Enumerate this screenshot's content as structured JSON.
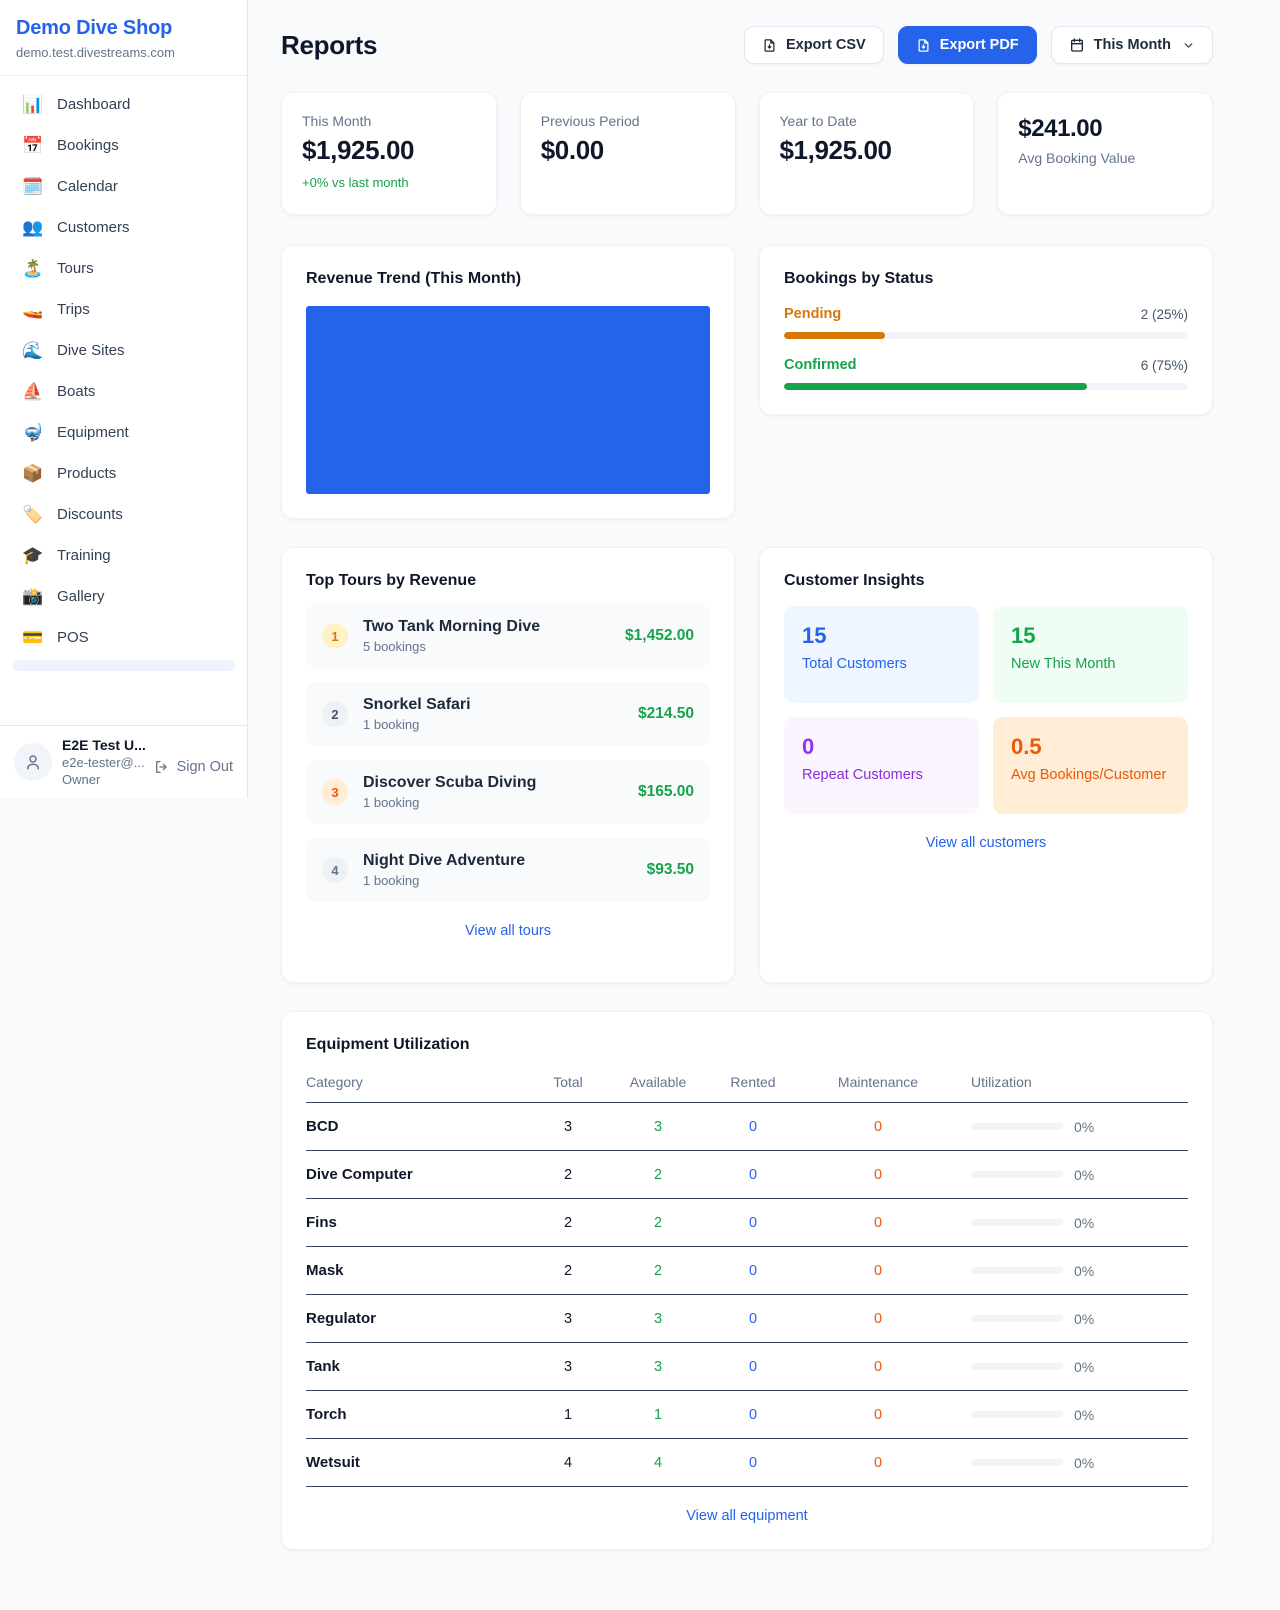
{
  "sidebar": {
    "shop_name": "Demo Dive Shop",
    "shop_domain": "demo.test.divestreams.com",
    "nav": [
      {
        "icon": "bar-chart-icon",
        "char": "📊",
        "label": "Dashboard"
      },
      {
        "icon": "calendar-date-icon",
        "char": "📅",
        "label": "Bookings"
      },
      {
        "icon": "spiral-calendar-icon",
        "char": "🗓️",
        "label": "Calendar"
      },
      {
        "icon": "people-icon",
        "char": "👥",
        "label": "Customers"
      },
      {
        "icon": "island-icon",
        "char": "🏝️",
        "label": "Tours"
      },
      {
        "icon": "speedboat-icon",
        "char": "🚤",
        "label": "Trips"
      },
      {
        "icon": "wave-icon",
        "char": "🌊",
        "label": "Dive Sites"
      },
      {
        "icon": "sailboat-icon",
        "char": "⛵",
        "label": "Boats"
      },
      {
        "icon": "diving-mask-icon",
        "char": "🤿",
        "label": "Equipment"
      },
      {
        "icon": "package-icon",
        "char": "📦",
        "label": "Products"
      },
      {
        "icon": "label-tag-icon",
        "char": "🏷️",
        "label": "Discounts"
      },
      {
        "icon": "graduation-cap-icon",
        "char": "🎓",
        "label": "Training"
      },
      {
        "icon": "camera-flash-icon",
        "char": "📸",
        "label": "Gallery"
      },
      {
        "icon": "credit-card-icon",
        "char": "💳",
        "label": "POS"
      }
    ],
    "user": {
      "name": "E2E Test U...",
      "email": "e2e-tester@...",
      "role": "Owner",
      "sign_out_label": "Sign Out"
    }
  },
  "header": {
    "title": "Reports",
    "export_csv_label": "Export CSV",
    "export_pdf_label": "Export PDF",
    "period_label": "This Month"
  },
  "stats": [
    {
      "label": "This Month",
      "value": "$1,925.00",
      "delta": "+0% vs last month"
    },
    {
      "label": "Previous Period",
      "value": "$0.00"
    },
    {
      "label": "Year to Date",
      "value": "$1,925.00"
    },
    {
      "label": "Avg Booking Value",
      "value": "$241.00"
    }
  ],
  "revenue_trend": {
    "title": "Revenue Trend (This Month)",
    "fill_color": "#2563eb"
  },
  "bookings_by_status": {
    "title": "Bookings by Status",
    "rows": [
      {
        "label": "Pending",
        "value": "2 (25%)",
        "width": "25%",
        "color": "#d97706"
      },
      {
        "label": "Confirmed",
        "value": "6 (75%)",
        "width": "75%",
        "color": "#16a34a"
      }
    ]
  },
  "top_tours": {
    "title": "Top Tours by Revenue",
    "rows": [
      {
        "rank": "1",
        "name": "Two Tank Morning Dive",
        "bookings": "5 bookings",
        "amount": "$1,452.00"
      },
      {
        "rank": "2",
        "name": "Snorkel Safari",
        "bookings": "1 booking",
        "amount": "$214.50"
      },
      {
        "rank": "3",
        "name": "Discover Scuba Diving",
        "bookings": "1 booking",
        "amount": "$165.00"
      },
      {
        "rank": "4",
        "name": "Night Dive Adventure",
        "bookings": "1 booking",
        "amount": "$93.50"
      }
    ],
    "view_all_label": "View all tours"
  },
  "customer_insights": {
    "title": "Customer Insights",
    "tiles": [
      {
        "value": "15",
        "label": "Total Customers",
        "theme": "blue",
        "accent": "#2563eb"
      },
      {
        "value": "15",
        "label": "New This Month",
        "theme": "green",
        "accent": "#16a34a"
      },
      {
        "value": "0",
        "label": "Repeat Customers",
        "theme": "purple",
        "accent": "#9333ea"
      },
      {
        "value": "0.5",
        "label": "Avg Bookings/Customer",
        "theme": "orange",
        "accent": "#ea580c"
      }
    ],
    "view_all_label": "View all customers"
  },
  "equipment": {
    "title": "Equipment Utilization",
    "columns": [
      "Category",
      "Total",
      "Available",
      "Rented",
      "Maintenance",
      "Utilization"
    ],
    "rows": [
      {
        "category": "BCD",
        "total": "3",
        "available": "3",
        "rented": "0",
        "maintenance": "0",
        "utilization": "0%",
        "util_width": "0%"
      },
      {
        "category": "Dive Computer",
        "total": "2",
        "available": "2",
        "rented": "0",
        "maintenance": "0",
        "utilization": "0%",
        "util_width": "0%"
      },
      {
        "category": "Fins",
        "total": "2",
        "available": "2",
        "rented": "0",
        "maintenance": "0",
        "utilization": "0%",
        "util_width": "0%"
      },
      {
        "category": "Mask",
        "total": "2",
        "available": "2",
        "rented": "0",
        "maintenance": "0",
        "utilization": "0%",
        "util_width": "0%"
      },
      {
        "category": "Regulator",
        "total": "3",
        "available": "3",
        "rented": "0",
        "maintenance": "0",
        "utilization": "0%",
        "util_width": "0%"
      },
      {
        "category": "Tank",
        "total": "3",
        "available": "3",
        "rented": "0",
        "maintenance": "0",
        "utilization": "0%",
        "util_width": "0%"
      },
      {
        "category": "Torch",
        "total": "1",
        "available": "1",
        "rented": "0",
        "maintenance": "0",
        "utilization": "0%",
        "util_width": "0%"
      },
      {
        "category": "Wetsuit",
        "total": "4",
        "available": "4",
        "rented": "0",
        "maintenance": "0",
        "utilization": "0%",
        "util_width": "0%"
      }
    ],
    "view_all_label": "View all equipment"
  },
  "chart_data": [
    {
      "type": "bar",
      "title": "Revenue Trend (This Month)",
      "categories": [
        "This Month"
      ],
      "values": [
        1925
      ],
      "note": "rendered as a solid blue filled block spanning the full plot area",
      "color": "#2563eb"
    },
    {
      "type": "bar",
      "title": "Bookings by Status",
      "categories": [
        "Pending",
        "Confirmed"
      ],
      "values": [
        2,
        6
      ],
      "percentages": [
        25,
        75
      ],
      "colors": [
        "#d97706",
        "#16a34a"
      ],
      "legend_position": "none"
    }
  ]
}
